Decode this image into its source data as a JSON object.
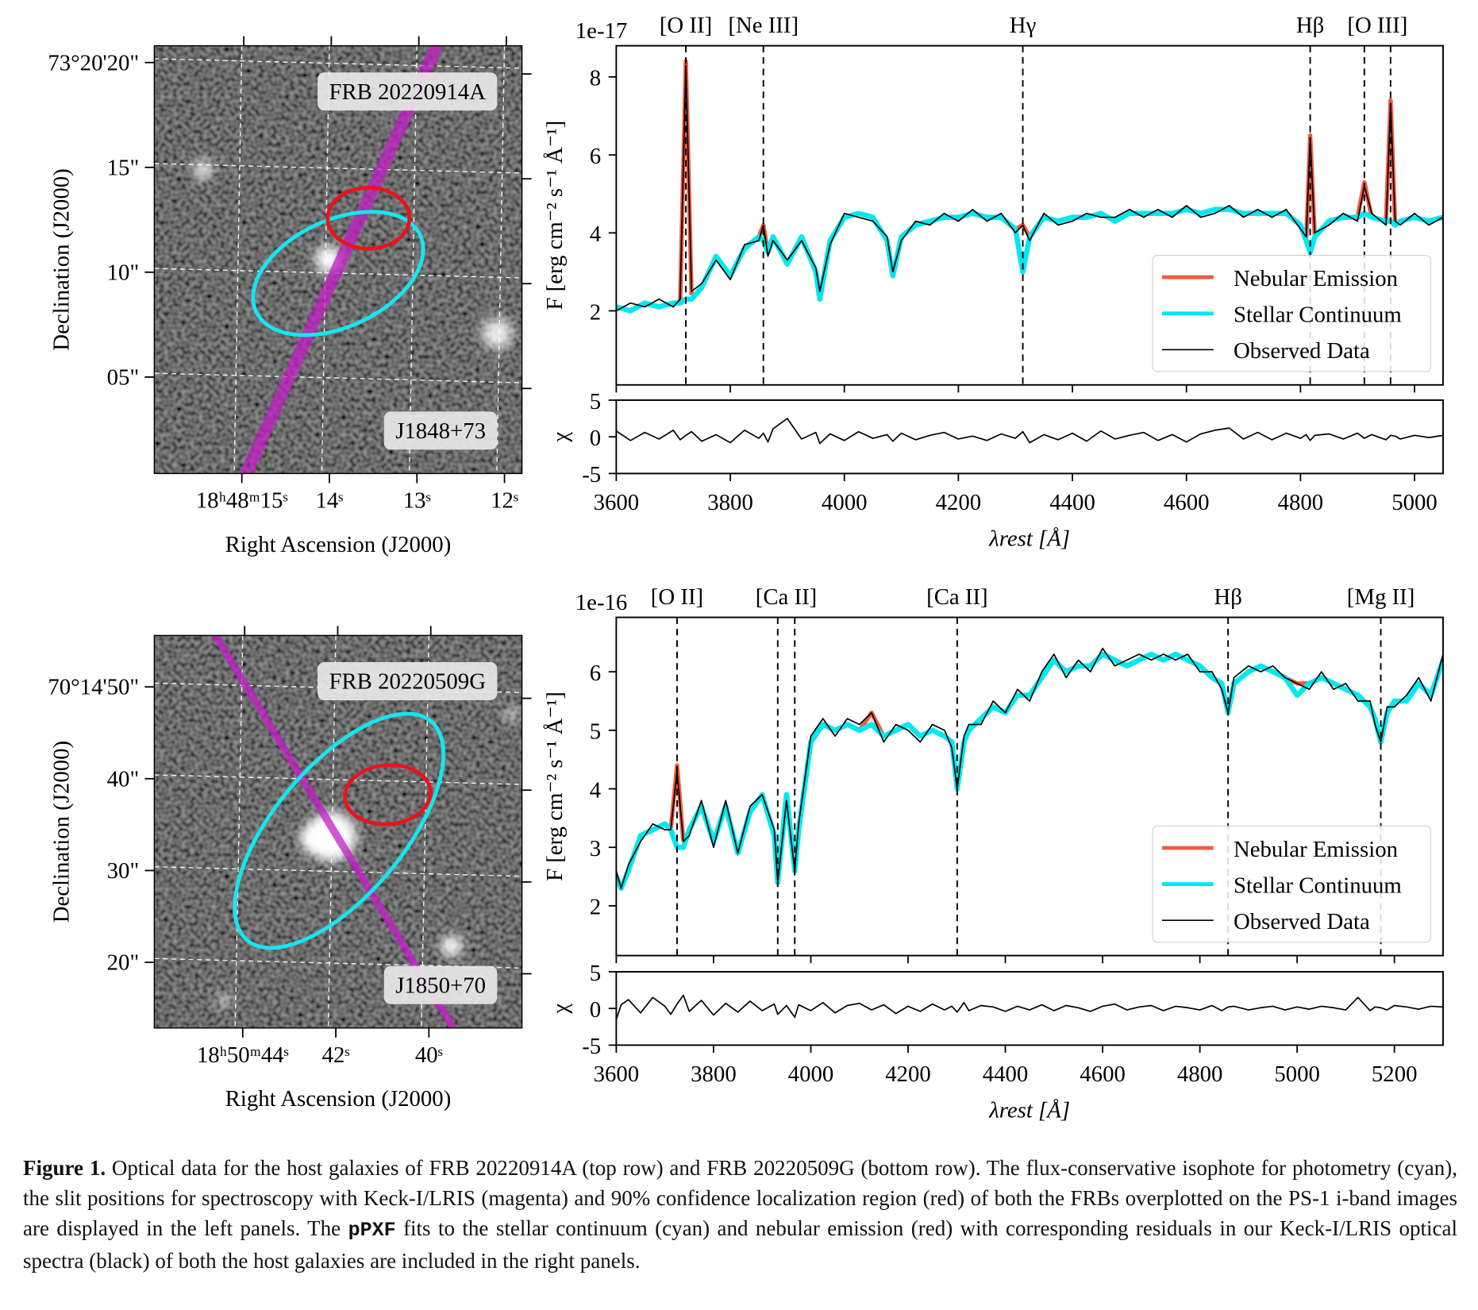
{
  "chart_data": [
    {
      "type": "image",
      "xlabel": "Right Ascension (J2000)",
      "ylabel": "Declination (J2000)",
      "xlim": [
        16.0,
        11.8
      ],
      "xticks": [
        {
          "value": 15,
          "label": "18ʰ48ᵐ15ˢ"
        },
        {
          "value": 14,
          "label": "14ˢ"
        },
        {
          "value": 13,
          "label": "13ˢ"
        },
        {
          "value": 12,
          "label": "12ˢ"
        }
      ],
      "ylim": [
        0.4,
        20.8
      ],
      "yticks": [
        {
          "value": 20,
          "label": "73°20'20\""
        },
        {
          "value": 15,
          "label": "15\""
        },
        {
          "value": 10,
          "label": "10\""
        },
        {
          "value": 5,
          "label": "05\""
        }
      ],
      "grid": true,
      "annotations": [
        "FRB 20220914A",
        "J1848+73"
      ]
    },
    {
      "type": "line",
      "offset": "1e-17",
      "xlabel": "λrest [Å]",
      "ylabel": "F [erg cm⁻² s⁻¹ Å⁻¹]",
      "xlim": [
        3600,
        5050
      ],
      "xticks": [
        3600,
        3800,
        4000,
        4200,
        4400,
        4600,
        4800,
        5000
      ],
      "ylim": [
        0.1,
        8.8
      ],
      "yticks": [
        2,
        4,
        6,
        8
      ],
      "legend": "lower right",
      "lines": [
        {
          "label": "[O II]",
          "x": [
            3722
          ]
        },
        {
          "label": "[Ne III]",
          "x": [
            3858
          ]
        },
        {
          "label": "Hγ",
          "x": [
            4313
          ]
        },
        {
          "label": "Hβ",
          "x": [
            4817
          ]
        },
        {
          "label": "[O III]",
          "x": [
            4912,
            4958
          ]
        }
      ],
      "x": [
        3600,
        3625,
        3650,
        3675,
        3700,
        3712,
        3722,
        3732,
        3750,
        3775,
        3800,
        3825,
        3850,
        3858,
        3866,
        3875,
        3900,
        3925,
        3950,
        3957,
        3975,
        4000,
        4025,
        4050,
        4075,
        4085,
        4100,
        4125,
        4150,
        4175,
        4200,
        4225,
        4250,
        4275,
        4300,
        4313,
        4325,
        4350,
        4375,
        4400,
        4425,
        4450,
        4475,
        4500,
        4525,
        4550,
        4575,
        4600,
        4625,
        4650,
        4675,
        4700,
        4725,
        4750,
        4775,
        4800,
        4810,
        4817,
        4825,
        4850,
        4875,
        4900,
        4912,
        4925,
        4950,
        4958,
        4966,
        4975,
        5000,
        5025,
        5050
      ],
      "series": [
        {
          "name": "Nebular Emission",
          "color": "#ef5b3f",
          "values": [
            null,
            null,
            null,
            null,
            null,
            2.2,
            8.4,
            2.4,
            null,
            null,
            null,
            null,
            3.9,
            4.2,
            3.5,
            null,
            null,
            null,
            null,
            null,
            null,
            null,
            null,
            null,
            null,
            null,
            null,
            null,
            null,
            null,
            null,
            null,
            null,
            null,
            4.1,
            4.2,
            3.9,
            null,
            null,
            null,
            null,
            null,
            null,
            null,
            null,
            null,
            null,
            null,
            null,
            null,
            null,
            null,
            null,
            null,
            null,
            null,
            3.8,
            6.5,
            3.9,
            null,
            null,
            4.4,
            5.3,
            4.4,
            4.3,
            7.4,
            4.2,
            null,
            null,
            null,
            null
          ]
        },
        {
          "name": "Stellar Continuum",
          "color": "#00e8f0",
          "values": [
            2.1,
            2.0,
            2.2,
            2.1,
            2.2,
            2.2,
            2.3,
            2.3,
            2.6,
            3.4,
            2.9,
            3.6,
            3.9,
            3.8,
            3.5,
            3.9,
            3.2,
            3.9,
            3.0,
            2.3,
            3.8,
            4.4,
            4.5,
            4.4,
            3.8,
            2.9,
            3.9,
            4.2,
            4.3,
            4.4,
            4.4,
            4.5,
            4.4,
            4.4,
            4.1,
            3.0,
            3.9,
            4.4,
            4.3,
            4.4,
            4.4,
            4.5,
            4.3,
            4.5,
            4.5,
            4.5,
            4.5,
            4.6,
            4.5,
            4.6,
            4.6,
            4.5,
            4.5,
            4.5,
            4.5,
            4.2,
            3.8,
            3.5,
            3.9,
            4.3,
            4.4,
            4.4,
            4.5,
            4.4,
            4.3,
            4.3,
            4.2,
            4.3,
            4.4,
            4.3,
            4.4
          ]
        },
        {
          "name": "Observed Data",
          "color": "#000000",
          "values": [
            2.0,
            2.2,
            2.1,
            2.3,
            2.1,
            2.3,
            8.3,
            2.5,
            2.7,
            3.3,
            2.8,
            3.7,
            3.8,
            4.2,
            3.4,
            3.8,
            3.3,
            3.8,
            3.1,
            2.5,
            3.7,
            4.5,
            4.4,
            4.3,
            3.9,
            3.0,
            3.8,
            4.3,
            4.2,
            4.5,
            4.3,
            4.6,
            4.3,
            4.5,
            4.0,
            4.2,
            3.8,
            4.5,
            4.2,
            4.3,
            4.5,
            4.4,
            4.4,
            4.6,
            4.4,
            4.6,
            4.4,
            4.7,
            4.4,
            4.5,
            4.7,
            4.4,
            4.6,
            4.4,
            4.6,
            4.1,
            3.9,
            6.4,
            4.0,
            4.2,
            4.5,
            4.3,
            5.2,
            4.5,
            4.2,
            7.3,
            4.3,
            4.2,
            4.5,
            4.2,
            4.4
          ]
        }
      ],
      "residual": {
        "ylabel": "χ",
        "ylim": [
          -5,
          5
        ],
        "yticks": [
          -5,
          0,
          5
        ],
        "values": [
          0.8,
          -0.5,
          0.6,
          -0.3,
          0.9,
          -0.4,
          0.2,
          0.7,
          -0.6,
          0.3,
          -0.8,
          0.9,
          -0.2,
          0.5,
          -0.7,
          1.1,
          2.5,
          -0.3,
          0.6,
          -0.9,
          0.4,
          -0.5,
          0.7,
          -0.2,
          0.3,
          -0.6,
          0.5,
          -0.4,
          0.2,
          0.6,
          -0.3,
          0.1,
          -0.5,
          0.4,
          -0.2,
          0.7,
          -0.8,
          0.3,
          -0.4,
          0.5,
          -0.6,
          0.8,
          -0.3,
          0.2,
          0.6,
          -0.5,
          0.3,
          -0.7,
          0.4,
          0.9,
          1.2,
          -0.3,
          0.6,
          -0.4,
          0.5,
          -0.2,
          0.3,
          -0.5,
          0.2,
          0.4,
          -0.3,
          0.5,
          -0.2,
          0.3,
          -0.4,
          0.2,
          0.1,
          -0.3,
          0.2,
          -0.1,
          0.2
        ]
      }
    },
    {
      "type": "image",
      "xlabel": "Right Ascension (J2000)",
      "ylabel": "Declination (J2000)",
      "xlim": [
        45.9,
        38.0
      ],
      "xticks": [
        {
          "value": 44,
          "label": "18ʰ50ᵐ44ˢ"
        },
        {
          "value": 42,
          "label": "42ˢ"
        },
        {
          "value": 40,
          "label": "40ˢ"
        }
      ],
      "ylim": [
        12.85,
        55.6
      ],
      "yticks": [
        {
          "value": 50,
          "label": "70°14'50\""
        },
        {
          "value": 40,
          "label": "40\""
        },
        {
          "value": 30,
          "label": "30\""
        },
        {
          "value": 20,
          "label": "20\""
        }
      ],
      "grid": true,
      "annotations": [
        "FRB 20220509G",
        "J1850+70"
      ]
    },
    {
      "type": "line",
      "offset": "1e-16",
      "xlabel": "λrest [Å]",
      "ylabel": "F [erg cm⁻² s⁻¹ Å⁻¹]",
      "xlim": [
        3600,
        5300
      ],
      "xticks": [
        3600,
        3800,
        4000,
        4200,
        4400,
        4600,
        4800,
        5000,
        5200
      ],
      "ylim": [
        1.15,
        6.93
      ],
      "yticks": [
        2,
        3,
        4,
        5,
        6
      ],
      "legend": "lower right",
      "lines": [
        {
          "label": "[O II]",
          "x": [
            3725
          ]
        },
        {
          "label": "[Ca II]",
          "x": [
            3932,
            3967
          ]
        },
        {
          "label": "[Ca II]",
          "x": [
            4301
          ]
        },
        {
          "label": "Hβ",
          "x": [
            4858
          ]
        },
        {
          "label": "[Mg II]",
          "x": [
            5172
          ]
        }
      ],
      "x": [
        3600,
        3610,
        3625,
        3650,
        3675,
        3700,
        3712,
        3725,
        3738,
        3750,
        3775,
        3800,
        3825,
        3850,
        3875,
        3900,
        3925,
        3932,
        3950,
        3967,
        3975,
        4000,
        4025,
        4050,
        4075,
        4100,
        4125,
        4150,
        4175,
        4200,
        4225,
        4250,
        4275,
        4290,
        4301,
        4315,
        4325,
        4350,
        4375,
        4400,
        4425,
        4450,
        4475,
        4500,
        4525,
        4550,
        4575,
        4600,
        4625,
        4650,
        4675,
        4700,
        4725,
        4750,
        4775,
        4800,
        4825,
        4845,
        4858,
        4870,
        4900,
        4925,
        4950,
        4975,
        5000,
        5025,
        5050,
        5075,
        5100,
        5125,
        5150,
        5160,
        5172,
        5185,
        5200,
        5225,
        5250,
        5275,
        5300
      ],
      "series": [
        {
          "name": "Nebular Emission",
          "color": "#ef5b3f",
          "values": [
            null,
            null,
            null,
            null,
            null,
            null,
            3.3,
            4.4,
            3.1,
            null,
            null,
            null,
            null,
            null,
            null,
            null,
            null,
            null,
            null,
            null,
            null,
            null,
            null,
            null,
            null,
            5.0,
            5.3,
            4.9,
            null,
            null,
            null,
            null,
            null,
            null,
            null,
            null,
            null,
            null,
            null,
            null,
            null,
            null,
            null,
            null,
            null,
            null,
            null,
            null,
            null,
            null,
            null,
            null,
            null,
            null,
            null,
            null,
            null,
            null,
            null,
            null,
            null,
            null,
            null,
            5.9,
            5.8,
            5.8,
            null,
            null,
            null,
            null,
            null,
            null,
            null,
            null,
            null,
            null,
            null,
            null,
            null
          ]
        },
        {
          "name": "Stellar Continuum",
          "color": "#00e8f0",
          "values": [
            2.5,
            2.3,
            2.6,
            3.2,
            3.3,
            3.4,
            3.3,
            3.0,
            3.0,
            3.3,
            3.7,
            3.1,
            3.7,
            2.9,
            3.6,
            3.9,
            3.2,
            2.4,
            3.9,
            2.6,
            3.3,
            4.8,
            5.1,
            5.0,
            5.1,
            5.0,
            5.1,
            4.9,
            5.0,
            5.1,
            4.9,
            5.0,
            4.9,
            4.8,
            4.0,
            4.8,
            5.0,
            5.2,
            5.4,
            5.3,
            5.6,
            5.6,
            5.9,
            6.2,
            6.0,
            6.1,
            6.1,
            6.3,
            6.2,
            6.1,
            6.2,
            6.3,
            6.2,
            6.3,
            6.2,
            6.1,
            5.9,
            5.8,
            5.3,
            5.8,
            6.0,
            6.1,
            6.0,
            5.9,
            5.6,
            5.8,
            5.9,
            5.8,
            5.7,
            5.6,
            5.4,
            5.2,
            4.8,
            5.3,
            5.5,
            5.5,
            5.8,
            5.6,
            6.2
          ]
        },
        {
          "name": "Observed Data",
          "color": "#000000",
          "values": [
            2.6,
            2.3,
            2.7,
            3.1,
            3.4,
            3.3,
            3.3,
            4.3,
            3.1,
            3.2,
            3.8,
            3.0,
            3.8,
            2.9,
            3.7,
            3.9,
            3.3,
            2.4,
            3.8,
            2.6,
            3.4,
            4.9,
            5.2,
            4.9,
            5.2,
            5.1,
            5.3,
            4.8,
            5.1,
            5.0,
            4.8,
            5.1,
            5.0,
            4.7,
            4.0,
            4.9,
            5.1,
            5.1,
            5.5,
            5.3,
            5.7,
            5.5,
            6.0,
            6.3,
            5.9,
            6.2,
            6.0,
            6.4,
            6.1,
            6.2,
            6.3,
            6.2,
            6.3,
            6.2,
            6.3,
            6.0,
            6.0,
            5.7,
            5.3,
            5.9,
            6.1,
            6.0,
            6.1,
            5.9,
            5.8,
            5.7,
            6.0,
            5.7,
            5.8,
            5.5,
            5.5,
            5.1,
            4.8,
            5.4,
            5.4,
            5.6,
            5.9,
            5.5,
            6.3
          ]
        }
      ],
      "residual": {
        "ylabel": "χ",
        "ylim": [
          -5,
          5
        ],
        "yticks": [
          -5,
          0,
          5
        ],
        "values": [
          -1.5,
          0.5,
          1.2,
          -0.6,
          1.5,
          0.3,
          -0.8,
          0.6,
          1.8,
          -0.4,
          1.1,
          -0.9,
          0.7,
          -0.5,
          1.0,
          -0.3,
          0.6,
          -0.8,
          0.4,
          -1.2,
          0.5,
          -0.3,
          0.8,
          -0.6,
          0.4,
          0.7,
          -0.2,
          0.5,
          -0.7,
          0.3,
          -0.4,
          0.6,
          -0.2,
          0.3,
          -0.5,
          0.8,
          -0.3,
          0.4,
          0.2,
          -0.4,
          0.3,
          -0.2,
          0.5,
          -0.3,
          0.4,
          0.1,
          -0.4,
          0.3,
          0.6,
          -0.2,
          0.2,
          0.4,
          -0.3,
          0.3,
          0.1,
          -0.2,
          0.4,
          -0.3,
          0.2,
          0.3,
          -0.2,
          0.1,
          0.3,
          -0.2,
          0.2,
          -0.1,
          0.3,
          0.1,
          -0.2,
          1.5,
          -0.3,
          0.2,
          0.1,
          -0.2,
          0.4,
          0.2,
          -0.1,
          0.3,
          0.2
        ]
      }
    }
  ],
  "caption": {
    "label": "Figure 1.",
    "text": "Optical data for the host galaxies of FRB 20220914A (top row) and FRB 20220509G (bottom row). The flux-conservative isophote for photometry (cyan), the slit positions for spectroscopy with Keck-I/LRIS (magenta) and 90% confidence localization region (red) of both the FRBs overplotted on the PS-1 i-band images are displayed in the left panels. The",
    "code": "pPXF",
    "text_after": "fits to the stellar continuum (cyan) and nebular emission (red) with corresponding residuals in our Keck-I/LRIS optical spectra (black) of both the host galaxies are included in the right panels."
  }
}
